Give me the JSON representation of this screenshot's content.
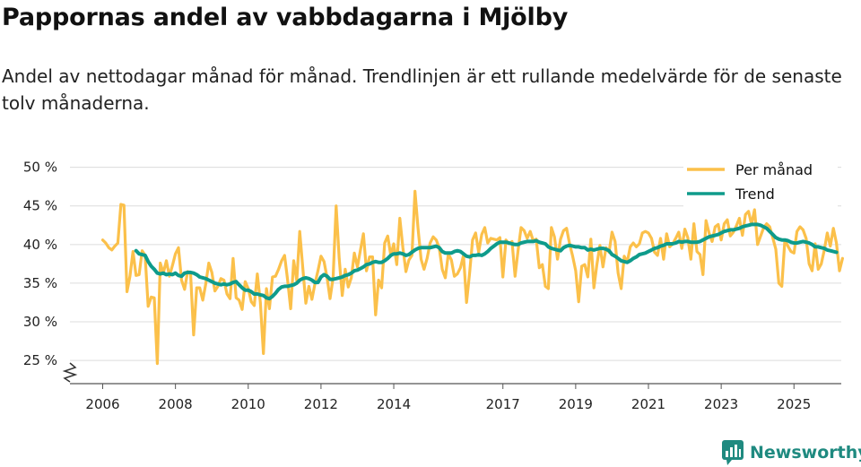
{
  "title": "Pappornas andel av vabbdagarna i Mjölby",
  "subtitle": "Andel av nettodagar månad för månad. Trendlinjen är ett rullande medelvärde för de senaste tolv månaderna.",
  "brand": "Newsworthy",
  "colors": {
    "monthly": "#fbc04a",
    "trend": "#0e9b8b",
    "grid": "#dcdcdc",
    "axis": "#555555",
    "brand": "#1f8a80"
  },
  "chart_data": {
    "type": "line",
    "title": "Pappornas andel av vabbdagarna i Mjölby",
    "xlabel": "",
    "ylabel": "",
    "x_start": 2006.0,
    "x_step": 0.0833333,
    "xlim": [
      2005.1,
      2026.3
    ],
    "ylim": [
      22,
      51
    ],
    "yticks": [
      25,
      30,
      35,
      40,
      45,
      50
    ],
    "ytick_labels": [
      "25 %",
      "30 %",
      "35 %",
      "40 %",
      "45 %",
      "50 %"
    ],
    "xticks": [
      2006,
      2008,
      2010,
      2012,
      2014,
      2017,
      2019,
      2021,
      2023,
      2025
    ],
    "xtick_labels": [
      "2006",
      "2008",
      "2010",
      "2012",
      "2014",
      "2017",
      "2019",
      "2021",
      "2023",
      "2025"
    ],
    "legend": {
      "position": "top-right",
      "entries": [
        "Per månad",
        "Trend"
      ]
    },
    "series": [
      {
        "name": "Per månad",
        "values": [
          40.6,
          40.2,
          39.6,
          39.3,
          39.8,
          40.2,
          45.2,
          45.1,
          33.9,
          35.9,
          39.1,
          36.0,
          36.1,
          39.2,
          38.6,
          32.0,
          33.2,
          33.1,
          24.6,
          37.6,
          36.3,
          37.9,
          35.9,
          37.3,
          38.8,
          39.6,
          35.4,
          34.2,
          36.5,
          36.2,
          28.3,
          34.4,
          34.4,
          32.8,
          34.9,
          37.6,
          36.4,
          34.0,
          34.6,
          35.6,
          35.4,
          33.6,
          33.0,
          38.2,
          33.1,
          32.8,
          31.6,
          35.2,
          34.3,
          32.6,
          32.1,
          36.2,
          32.5,
          25.9,
          34.3,
          31.7,
          35.8,
          35.9,
          36.8,
          37.9,
          38.6,
          35.4,
          31.7,
          37.9,
          35.3,
          41.7,
          37.0,
          32.4,
          34.6,
          32.9,
          34.9,
          36.6,
          38.5,
          37.8,
          35.7,
          33.0,
          35.7,
          45.0,
          38.2,
          33.4,
          36.8,
          34.5,
          35.7,
          38.9,
          37.1,
          39.3,
          41.4,
          36.6,
          38.4,
          38.4,
          30.9,
          35.4,
          34.4,
          40.2,
          41.1,
          38.6,
          40.1,
          37.4,
          43.4,
          39.6,
          36.5,
          38.0,
          38.6,
          46.9,
          42.1,
          38.1,
          36.8,
          38.2,
          40.2,
          41.0,
          40.6,
          39.6,
          36.8,
          35.7,
          38.8,
          38.0,
          35.9,
          36.2,
          37.0,
          38.6,
          32.5,
          36.3,
          40.6,
          41.5,
          39.0,
          41.3,
          42.2,
          40.2,
          40.8,
          40.7,
          40.6,
          40.9,
          35.8,
          40.6,
          40.1,
          40.4,
          35.9,
          39.2,
          42.2,
          41.8,
          40.8,
          41.7,
          40.5,
          40.7,
          37.0,
          37.4,
          34.6,
          34.3,
          42.2,
          41.0,
          38.1,
          40.7,
          41.8,
          42.1,
          40.1,
          38.5,
          36.6,
          32.6,
          37.2,
          37.4,
          35.8,
          40.7,
          34.4,
          37.4,
          39.9,
          37.1,
          39.6,
          39.0,
          41.6,
          40.4,
          36.3,
          34.3,
          38.5,
          37.7,
          39.7,
          40.2,
          39.7,
          40.1,
          41.5,
          41.7,
          41.5,
          40.8,
          39.0,
          38.6,
          40.8,
          38.1,
          41.4,
          39.7,
          40.1,
          40.8,
          41.6,
          39.5,
          42.0,
          40.9,
          38.1,
          42.7,
          39.1,
          38.7,
          36.1,
          43.1,
          41.5,
          40.4,
          42.3,
          42.6,
          40.6,
          42.7,
          43.2,
          41.1,
          41.6,
          42.4,
          43.4,
          41.2,
          43.9,
          44.3,
          42.6,
          44.5,
          40.0,
          41.1,
          42.2,
          42.7,
          42.3,
          40.9,
          39.4,
          35.0,
          34.6,
          40.6,
          39.8,
          39.1,
          38.9,
          41.7,
          42.3,
          41.9,
          40.8,
          37.5,
          36.6,
          40.1,
          36.8,
          37.5,
          39.3,
          41.5,
          39.8,
          42.1,
          40.2,
          36.6,
          38.2
        ]
      },
      {
        "name": "Trend",
        "values": [
          null,
          null,
          null,
          null,
          null,
          null,
          null,
          null,
          null,
          null,
          null,
          39.2,
          38.8,
          38.7,
          38.6,
          37.8,
          37.2,
          36.8,
          36.3,
          36.2,
          36.3,
          36.1,
          36.2,
          36.1,
          36.3,
          36.0,
          35.9,
          36.3,
          36.4,
          36.4,
          36.3,
          36.1,
          35.8,
          35.7,
          35.6,
          35.4,
          35.2,
          35.0,
          34.9,
          34.8,
          34.9,
          34.8,
          34.9,
          35.1,
          35.2,
          34.8,
          34.4,
          34.1,
          34.1,
          33.9,
          33.6,
          33.6,
          33.5,
          33.4,
          33.1,
          33.0,
          33.3,
          33.7,
          34.2,
          34.5,
          34.6,
          34.6,
          34.7,
          34.8,
          35.0,
          35.4,
          35.6,
          35.7,
          35.6,
          35.4,
          35.1,
          35.1,
          35.8,
          36.1,
          35.9,
          35.5,
          35.5,
          35.6,
          35.7,
          35.8,
          36.0,
          36.1,
          36.3,
          36.6,
          36.7,
          36.9,
          37.1,
          37.4,
          37.5,
          37.7,
          37.8,
          37.7,
          37.7,
          37.9,
          38.2,
          38.6,
          38.8,
          38.8,
          38.9,
          38.8,
          38.6,
          38.7,
          39.0,
          39.3,
          39.5,
          39.6,
          39.6,
          39.6,
          39.6,
          39.7,
          39.8,
          39.6,
          39.1,
          38.9,
          38.9,
          38.9,
          39.1,
          39.2,
          39.1,
          38.8,
          38.5,
          38.4,
          38.6,
          38.6,
          38.7,
          38.6,
          38.8,
          39.1,
          39.5,
          39.8,
          40.1,
          40.3,
          40.3,
          40.3,
          40.2,
          40.1,
          40.0,
          40.0,
          40.2,
          40.3,
          40.4,
          40.4,
          40.4,
          40.5,
          40.3,
          40.2,
          40.1,
          39.7,
          39.5,
          39.4,
          39.3,
          39.2,
          39.6,
          39.8,
          39.9,
          39.8,
          39.7,
          39.7,
          39.6,
          39.6,
          39.3,
          39.4,
          39.3,
          39.4,
          39.5,
          39.5,
          39.4,
          39.2,
          38.7,
          38.5,
          38.2,
          37.9,
          37.8,
          37.7,
          37.9,
          38.2,
          38.4,
          38.7,
          38.8,
          38.9,
          39.1,
          39.3,
          39.5,
          39.6,
          39.8,
          39.9,
          40.1,
          40.1,
          40.1,
          40.2,
          40.4,
          40.3,
          40.4,
          40.4,
          40.3,
          40.3,
          40.3,
          40.4,
          40.6,
          40.8,
          41.0,
          41.1,
          41.2,
          41.3,
          41.5,
          41.7,
          41.8,
          41.9,
          41.9,
          42.0,
          42.1,
          42.3,
          42.4,
          42.5,
          42.6,
          42.6,
          42.6,
          42.5,
          42.3,
          42.1,
          41.7,
          41.3,
          40.9,
          40.7,
          40.6,
          40.6,
          40.5,
          40.3,
          40.2,
          40.2,
          40.3,
          40.4,
          40.3,
          40.2,
          40.0,
          39.7,
          39.7,
          39.6,
          39.5,
          39.3,
          39.2,
          39.1,
          39.0
        ]
      }
    ]
  }
}
